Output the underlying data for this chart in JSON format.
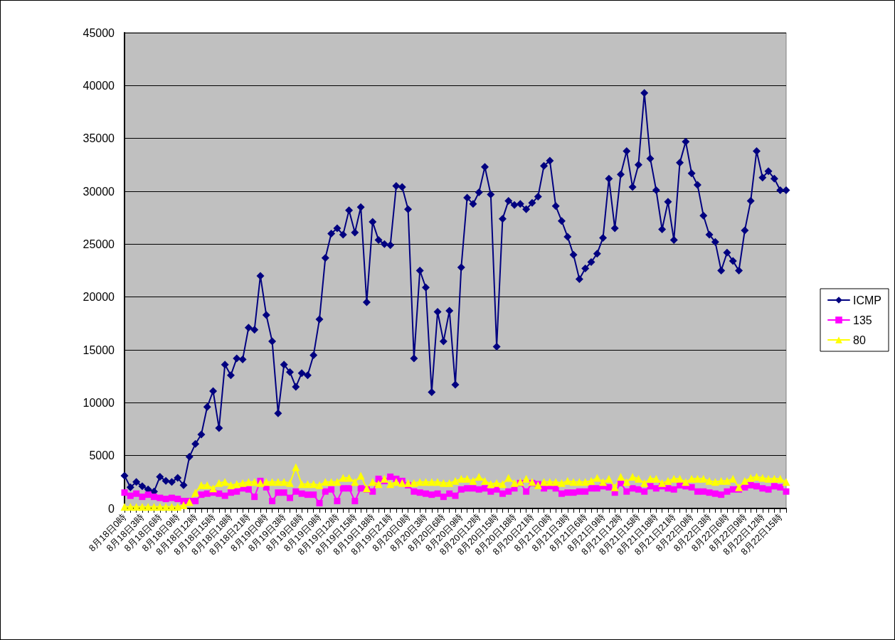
{
  "chart_data": {
    "type": "line",
    "categories": [
      "8月18日0時",
      null,
      null,
      "8月18日3時",
      null,
      null,
      "8月18日6時",
      null,
      null,
      "8月18日9時",
      null,
      null,
      "8月18日12時",
      null,
      null,
      "8月18日15時",
      null,
      null,
      "8月18日18時",
      null,
      null,
      "8月18日21時",
      null,
      null,
      "8月19日0時",
      null,
      null,
      "8月19日3時",
      null,
      null,
      "8月19日6時",
      null,
      null,
      "8月19日9時",
      null,
      null,
      "8月19日12時",
      null,
      null,
      "8月19日15時",
      null,
      null,
      "8月19日18時",
      null,
      null,
      "8月19日21時",
      null,
      null,
      "8月20日0時",
      null,
      null,
      "8月20日3時",
      null,
      null,
      "8月20日6時",
      null,
      null,
      "8月20日9時",
      null,
      null,
      "8月20日12時",
      null,
      null,
      "8月20日15時",
      null,
      null,
      "8月20日18時",
      null,
      null,
      "8月20日21時",
      null,
      null,
      "8月21日0時",
      null,
      null,
      "8月21日3時",
      null,
      null,
      "8月21日6時",
      null,
      null,
      "8月21日9時",
      null,
      null,
      "8月21日12時",
      null,
      null,
      "8月21日15時",
      null,
      null,
      "8月21日18時",
      null,
      null,
      "8月21日21時",
      null,
      null,
      "8月22日0時",
      null,
      null,
      "8月22日3時",
      null,
      null,
      "8月22日6時",
      null,
      null,
      "8月22日9時",
      null,
      null,
      "8月22日12時",
      null,
      null,
      "8月22日15時",
      null
    ],
    "series": [
      {
        "name": "ICMP",
        "color": "#000080",
        "marker": "diamond",
        "values": [
          3100,
          2000,
          2500,
          2100,
          1800,
          1600,
          3000,
          2600,
          2500,
          2900,
          2200,
          4900,
          6100,
          7000,
          9600,
          11100,
          7600,
          13600,
          12600,
          14200,
          14100,
          17100,
          16900,
          22000,
          18300,
          15800,
          9000,
          13600,
          12900,
          11500,
          12800,
          12600,
          14500,
          17900,
          23700,
          26000,
          26500,
          25900,
          28200,
          26100,
          28500,
          19500,
          27100,
          25400,
          25000,
          24900,
          30500,
          30400,
          28300,
          14200,
          22500,
          20900,
          11000,
          18600,
          15800,
          18700,
          11700,
          22800,
          29400,
          28800,
          29900,
          32300,
          29700,
          15300,
          27400,
          29100,
          28700,
          28800,
          28300,
          28900,
          29500,
          32400,
          32900,
          28600,
          27200,
          25700,
          24000,
          21700,
          22700,
          23300,
          24100,
          25600,
          31200,
          26500,
          31600,
          33800,
          30400,
          32500,
          39300,
          33100,
          30100,
          26400,
          29000,
          25400,
          32700,
          34700,
          31700,
          30600,
          27700,
          25900,
          25200,
          22500,
          24200,
          23400,
          22500,
          26300,
          29100,
          33800,
          31300,
          31900,
          31200,
          30100,
          30100
        ]
      },
      {
        "name": "135",
        "color": "#ff00ff",
        "marker": "square",
        "values": [
          1500,
          1200,
          1400,
          1100,
          1300,
          1100,
          1000,
          900,
          1000,
          900,
          700,
          700,
          700,
          1300,
          1400,
          1500,
          1400,
          1200,
          1500,
          1600,
          1900,
          1800,
          1100,
          2600,
          2000,
          700,
          1500,
          1500,
          1000,
          1600,
          1400,
          1300,
          1300,
          500,
          1600,
          1800,
          700,
          1900,
          1900,
          700,
          1900,
          1800,
          1600,
          2800,
          2600,
          3000,
          2800,
          2600,
          2200,
          1600,
          1500,
          1400,
          1300,
          1400,
          1100,
          1400,
          1200,
          1800,
          1900,
          1900,
          1800,
          1900,
          1600,
          1800,
          1400,
          1600,
          1900,
          2400,
          1600,
          2400,
          2300,
          1900,
          2100,
          1900,
          1400,
          1500,
          1500,
          1600,
          1600,
          1900,
          1900,
          2100,
          2000,
          1500,
          2400,
          1600,
          1900,
          1800,
          1600,
          2100,
          1900,
          2100,
          1900,
          1800,
          2200,
          2100,
          2000,
          1600,
          1600,
          1500,
          1400,
          1300,
          1600,
          1800,
          1800,
          2000,
          2200,
          2100,
          1900,
          1800,
          2100,
          2000,
          1600
        ]
      },
      {
        "name": "80",
        "color": "#ffff00",
        "marker": "triangle",
        "values": [
          150,
          150,
          150,
          150,
          150,
          150,
          150,
          150,
          150,
          150,
          300,
          600,
          1500,
          2200,
          2200,
          1900,
          2400,
          2500,
          2200,
          2300,
          2400,
          2500,
          2500,
          2400,
          2500,
          2500,
          2500,
          2500,
          2400,
          3900,
          2300,
          2300,
          2300,
          2200,
          2500,
          2500,
          2500,
          2900,
          2900,
          2500,
          3100,
          1900,
          2500,
          2300,
          2800,
          2300,
          2500,
          2400,
          2400,
          2400,
          2500,
          2500,
          2500,
          2500,
          2400,
          2400,
          2600,
          2800,
          2800,
          2600,
          3000,
          2600,
          2300,
          2400,
          2300,
          2900,
          2400,
          2500,
          2800,
          2500,
          2200,
          2500,
          2500,
          2500,
          2400,
          2600,
          2500,
          2500,
          2500,
          2600,
          2900,
          2500,
          2800,
          2000,
          3000,
          2500,
          3000,
          2800,
          2400,
          2800,
          2800,
          2400,
          2600,
          2800,
          2800,
          2500,
          2800,
          2800,
          2800,
          2600,
          2500,
          2600,
          2600,
          2800,
          2000,
          2600,
          2900,
          3000,
          2900,
          2800,
          2800,
          2800,
          2500
        ]
      }
    ],
    "ylim": [
      0,
      45000
    ],
    "yticks": [
      0,
      5000,
      10000,
      15000,
      20000,
      25000,
      30000,
      35000,
      40000,
      45000
    ],
    "grid": "y",
    "legend": "right"
  }
}
